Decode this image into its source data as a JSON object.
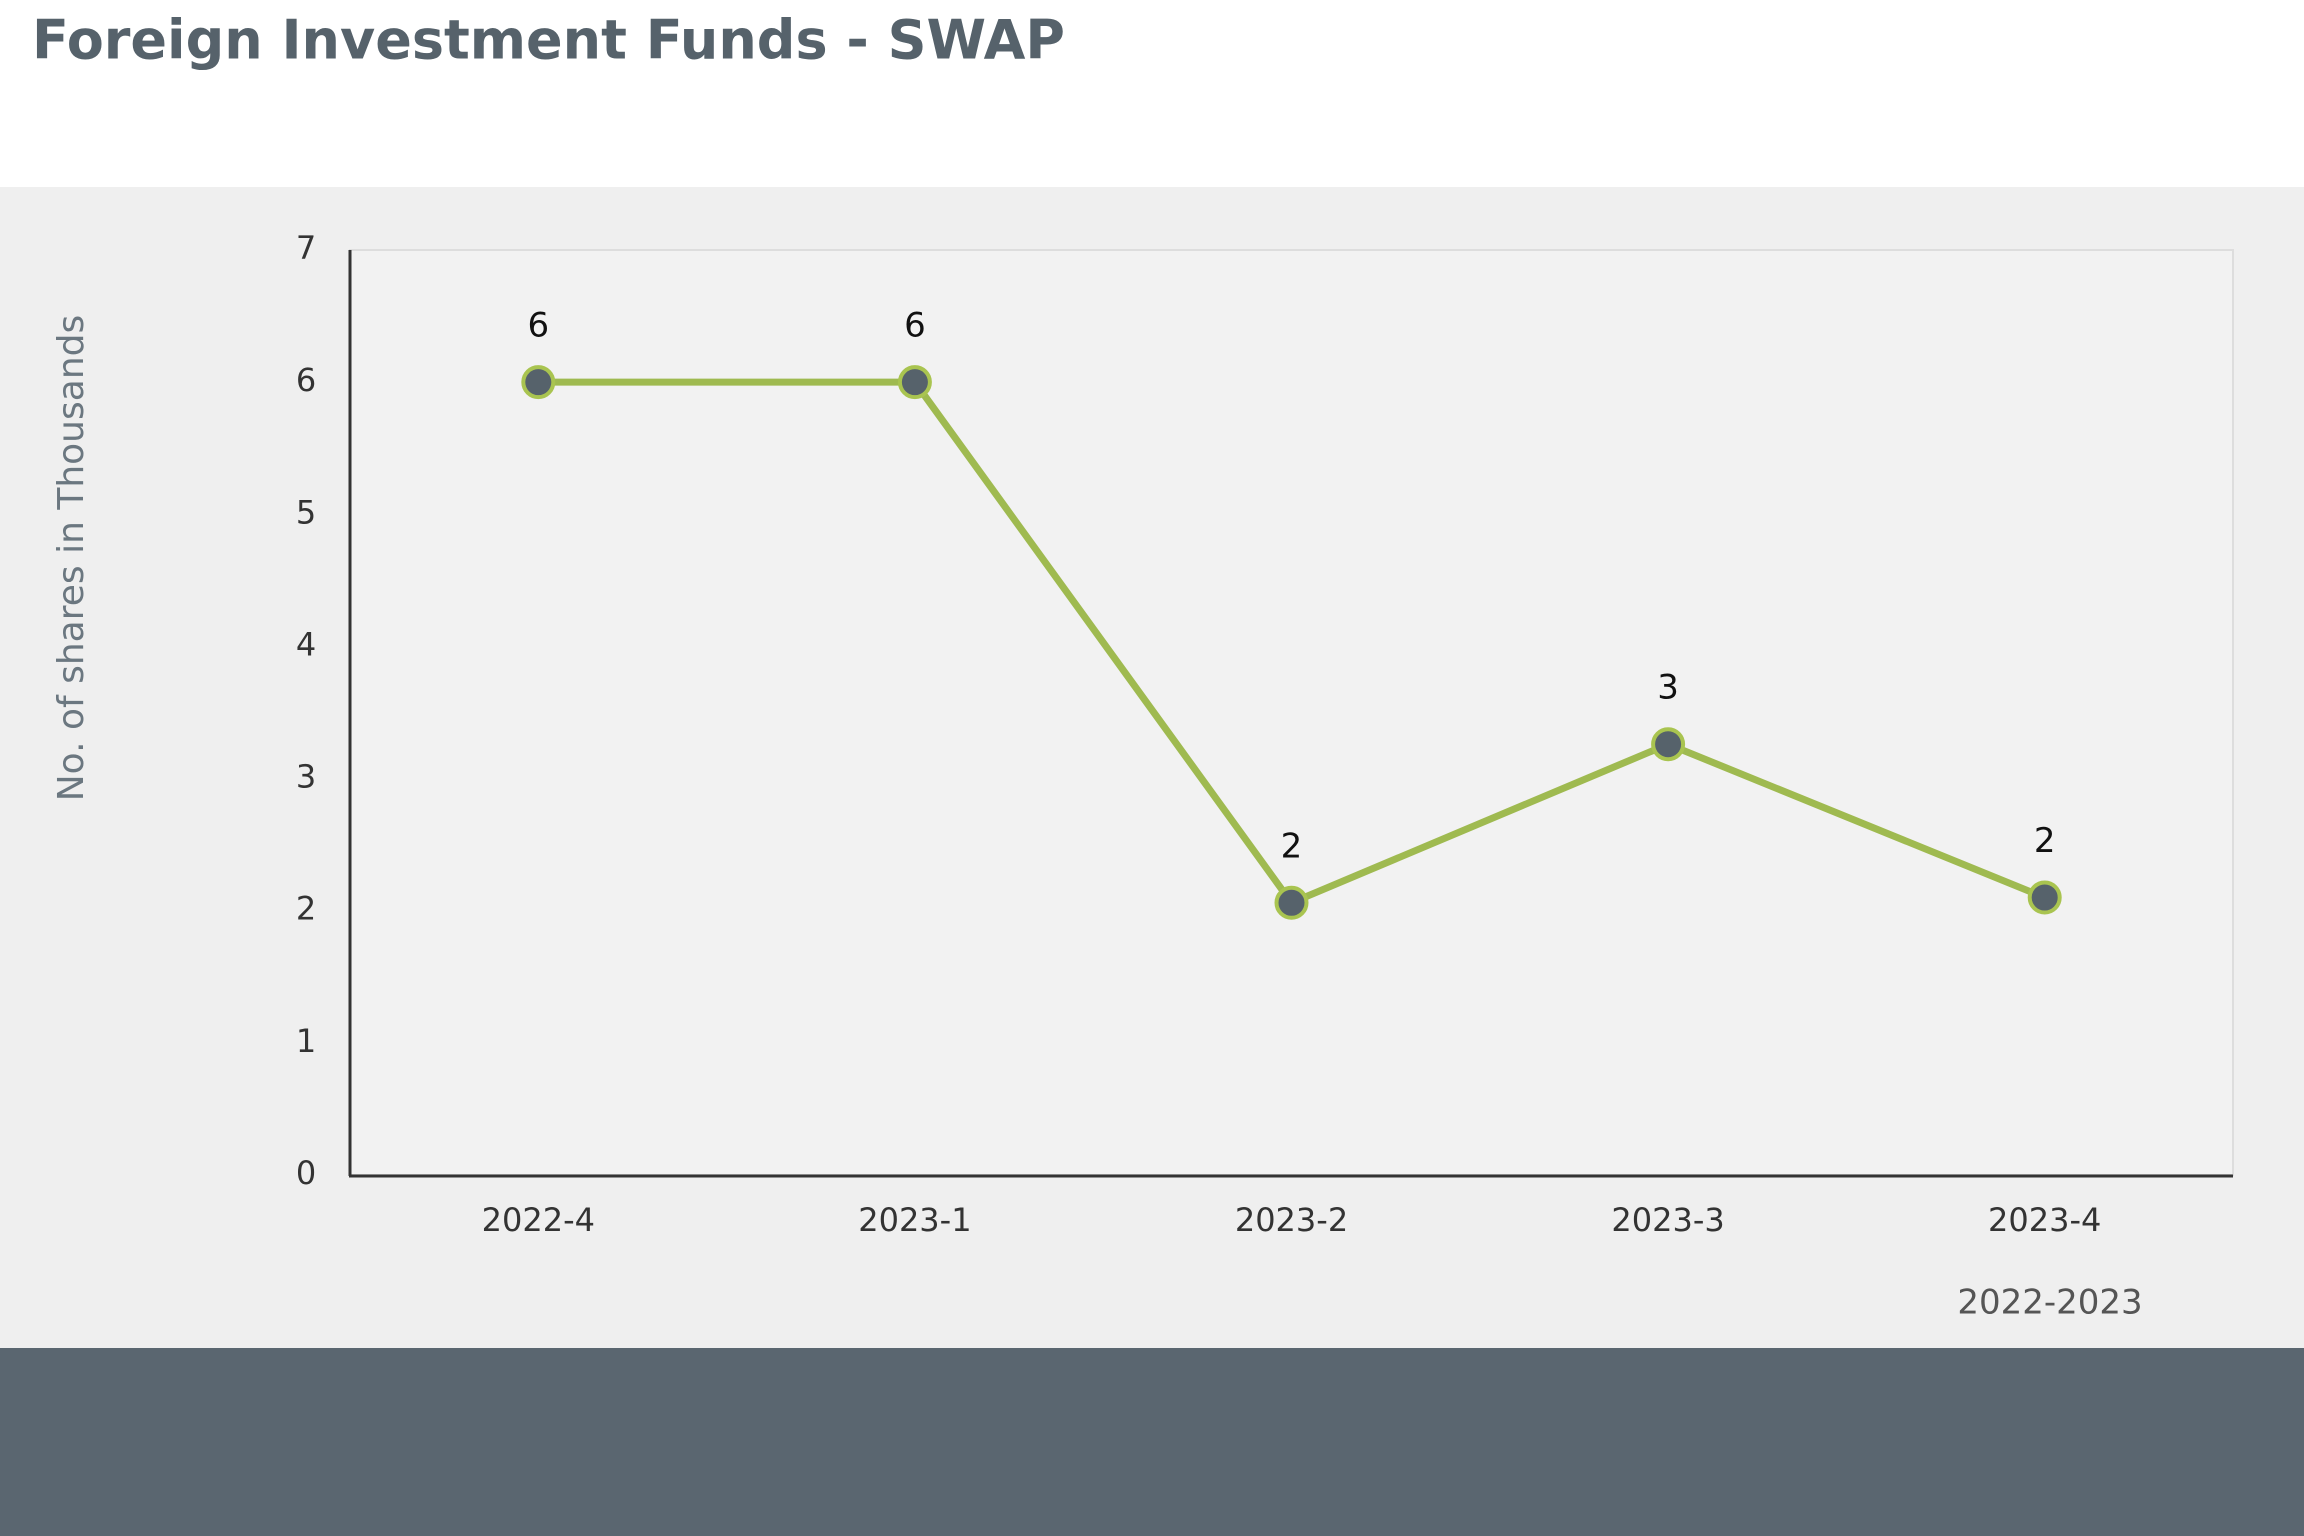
{
  "chart_data": {
    "type": "line",
    "title": "Foreign Investment Funds - SWAP",
    "y_label": "No. of shares in Thousands",
    "x_label": "2022-2023",
    "categories": [
      "2022-4",
      "2023-1",
      "2023-2",
      "2023-3",
      "2023-4"
    ],
    "series": [
      {
        "name": "SWAP",
        "color": "#9fba50",
        "values": [
          6,
          6,
          2.06,
          3.26,
          2.1
        ],
        "value_labels": [
          "6",
          "6",
          "2",
          "3",
          "2"
        ]
      }
    ],
    "ylim": [
      0,
      7
    ],
    "yticks": [
      0,
      1,
      2,
      3,
      4,
      5,
      6,
      7
    ],
    "grid": false
  }
}
